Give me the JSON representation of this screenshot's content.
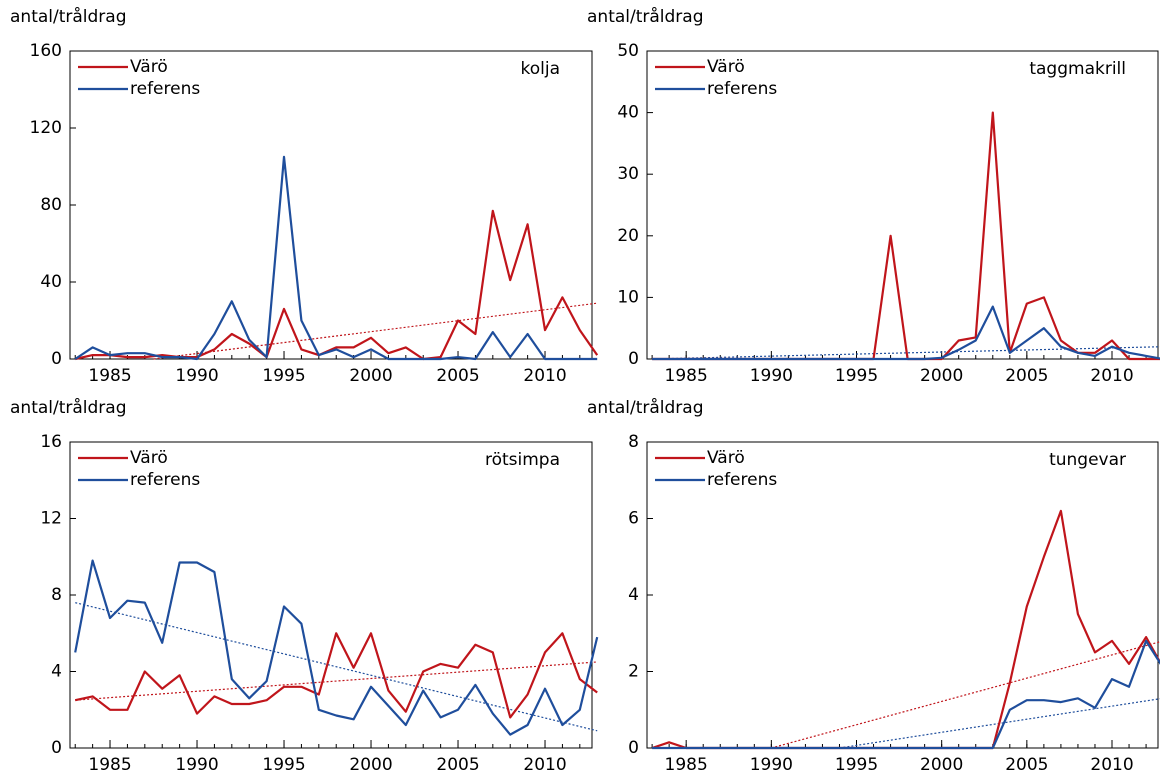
{
  "chart_data": [
    {
      "type": "line",
      "ylabel": "antal/tråldrag",
      "panel_label": "kolja",
      "x": [
        1983,
        1984,
        1985,
        1986,
        1987,
        1988,
        1989,
        1990,
        1991,
        1992,
        1993,
        1994,
        1995,
        1996,
        1997,
        1998,
        1999,
        2000,
        2001,
        2002,
        2003,
        2004,
        2005,
        2006,
        2007,
        2008,
        2009,
        2010,
        2011,
        2012,
        2013
      ],
      "series": [
        {
          "name": "Värö",
          "color": "#c0151b",
          "values": [
            0,
            2,
            2,
            1,
            1,
            2,
            1,
            1,
            5,
            13,
            8,
            1,
            26,
            5,
            2,
            6,
            6,
            11,
            3,
            6,
            0,
            1,
            20,
            13,
            77,
            41,
            70,
            15,
            32,
            15,
            2
          ]
        },
        {
          "name": "referens",
          "color": "#1f4e9c",
          "values": [
            0,
            6,
            2,
            3,
            3,
            1,
            1,
            0,
            13,
            30,
            10,
            1,
            105,
            20,
            2,
            5,
            1,
            5,
            0,
            0,
            0,
            0,
            1,
            0,
            14,
            1,
            13,
            0,
            0,
            0,
            0
          ]
        }
      ],
      "trend_lines": [
        {
          "color": "#c0151b",
          "x": [
            1987.5,
            2013
          ],
          "values": [
            0,
            29
          ]
        }
      ],
      "xlim": [
        1982.7,
        2012.7
      ],
      "xticks": [
        1985,
        1990,
        1995,
        2000,
        2005,
        2010
      ],
      "ylim": [
        0,
        160
      ],
      "yticks": [
        0,
        40,
        80,
        120,
        160
      ]
    },
    {
      "type": "line",
      "ylabel": "antal/tråldrag",
      "panel_label": "taggmakrill",
      "x": [
        1983,
        1984,
        1985,
        1986,
        1987,
        1988,
        1989,
        1990,
        1991,
        1992,
        1993,
        1994,
        1995,
        1996,
        1997,
        1998,
        1999,
        2000,
        2001,
        2002,
        2003,
        2004,
        2005,
        2006,
        2007,
        2008,
        2009,
        2010,
        2011,
        2012,
        2013
      ],
      "series": [
        {
          "name": "Värö",
          "color": "#c0151b",
          "values": [
            0,
            0,
            0,
            0,
            0,
            0,
            0,
            0,
            0,
            0,
            0,
            0,
            0,
            0,
            20,
            0,
            0,
            0,
            3,
            3.5,
            40,
            1,
            9,
            10,
            3,
            1,
            1,
            3,
            0,
            0,
            0
          ]
        },
        {
          "name": "referens",
          "color": "#1f4e9c",
          "values": [
            0,
            0,
            0,
            0,
            0,
            0,
            0,
            0,
            0,
            0,
            0,
            0,
            0,
            0,
            0,
            0,
            0,
            0.2,
            1.5,
            3,
            8.5,
            1,
            3,
            5,
            2,
            1,
            0.5,
            2,
            1,
            0.5,
            0
          ]
        }
      ],
      "trend_lines": [
        {
          "color": "#1f4e9c",
          "x": [
            1983,
            2013
          ],
          "values": [
            0,
            2
          ]
        }
      ],
      "xlim": [
        1982.7,
        2012.7
      ],
      "xticks": [
        1985,
        1990,
        1995,
        2000,
        2005,
        2010
      ],
      "ylim": [
        0,
        50
      ],
      "yticks": [
        0,
        10,
        20,
        30,
        40,
        50
      ]
    },
    {
      "type": "line",
      "ylabel": "antal/tråldrag",
      "panel_label": "rötsimpa",
      "x": [
        1983,
        1984,
        1985,
        1986,
        1987,
        1988,
        1989,
        1990,
        1991,
        1992,
        1993,
        1994,
        1995,
        1996,
        1997,
        1998,
        1999,
        2000,
        2001,
        2002,
        2003,
        2004,
        2005,
        2006,
        2007,
        2008,
        2009,
        2010,
        2011,
        2012,
        2013
      ],
      "series": [
        {
          "name": "Värö",
          "color": "#c0151b",
          "values": [
            2.5,
            2.7,
            2,
            2,
            4,
            3.1,
            3.8,
            1.8,
            2.7,
            2.3,
            2.3,
            2.5,
            3.2,
            3.2,
            2.8,
            6,
            4.2,
            6,
            3,
            1.9,
            4,
            4.4,
            4.2,
            5.4,
            5,
            1.6,
            2.8,
            5,
            6,
            3.6,
            2.9
          ]
        },
        {
          "name": "referens",
          "color": "#1f4e9c",
          "values": [
            5,
            9.8,
            6.8,
            7.7,
            7.6,
            5.5,
            9.7,
            9.7,
            9.2,
            3.6,
            2.6,
            3.5,
            7.4,
            6.5,
            2,
            1.7,
            1.5,
            3.2,
            2.2,
            1.2,
            3,
            1.6,
            2,
            3.3,
            1.8,
            0.7,
            1.2,
            3.1,
            1.2,
            2,
            5.8
          ]
        }
      ],
      "trend_lines": [
        {
          "color": "#c0151b",
          "x": [
            1983,
            2013
          ],
          "values": [
            2.5,
            4.5
          ]
        },
        {
          "color": "#1f4e9c",
          "x": [
            1983,
            2013
          ],
          "values": [
            7.6,
            0.9
          ]
        }
      ],
      "xlim": [
        1982.7,
        2012.7
      ],
      "xticks": [
        1985,
        1990,
        1995,
        2000,
        2005,
        2010
      ],
      "ylim": [
        0,
        16
      ],
      "yticks": [
        0,
        4,
        8,
        12,
        16
      ]
    },
    {
      "type": "line",
      "ylabel": "antal/tråldrag",
      "panel_label": "tungevar",
      "x": [
        1983,
        1984,
        1985,
        1986,
        1987,
        1988,
        1989,
        1990,
        1991,
        1992,
        1993,
        1994,
        1995,
        1996,
        1997,
        1998,
        1999,
        2000,
        2001,
        2002,
        2003,
        2004,
        2005,
        2006,
        2007,
        2008,
        2009,
        2010,
        2011,
        2012,
        2013
      ],
      "series": [
        {
          "name": "Värö",
          "color": "#c0151b",
          "values": [
            0,
            0.15,
            0,
            0,
            0,
            0,
            0,
            0,
            0,
            0,
            0,
            0,
            0,
            0,
            0,
            0,
            0,
            0,
            0,
            0,
            0,
            1.7,
            3.7,
            5,
            6.2,
            3.5,
            2.5,
            2.8,
            2.2,
            2.9,
            2.1
          ]
        },
        {
          "name": "referens",
          "color": "#1f4e9c",
          "values": [
            0,
            0,
            0,
            0,
            0,
            0,
            0,
            0,
            0,
            0,
            0,
            0,
            0,
            0,
            0,
            0,
            0,
            0,
            0,
            0,
            0,
            1,
            1.25,
            1.25,
            1.2,
            1.3,
            1.05,
            1.8,
            1.6,
            2.8,
            2.1
          ]
        }
      ],
      "trend_lines": [
        {
          "color": "#c0151b",
          "x": [
            1990,
            2013
          ],
          "values": [
            0,
            2.8
          ]
        },
        {
          "color": "#1f4e9c",
          "x": [
            1994,
            2013
          ],
          "values": [
            0,
            1.3
          ]
        }
      ],
      "xlim": [
        1982.7,
        2012.7
      ],
      "xticks": [
        1985,
        1990,
        1995,
        2000,
        2005,
        2010
      ],
      "ylim": [
        0,
        8
      ],
      "yticks": [
        0,
        2,
        4,
        6,
        8
      ]
    }
  ]
}
